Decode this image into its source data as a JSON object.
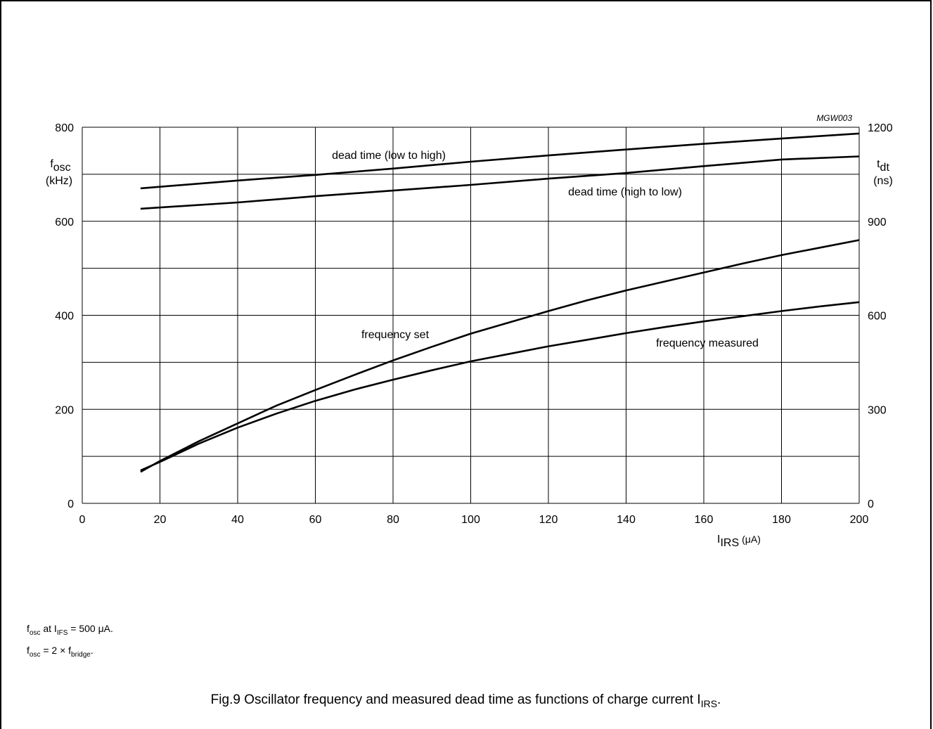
{
  "chart_data": {
    "type": "line",
    "code": "MGW003",
    "x": {
      "ticks": [
        0,
        20,
        40,
        60,
        80,
        100,
        120,
        140,
        160,
        180,
        200
      ],
      "range": [
        0,
        200
      ],
      "label_main": "I",
      "label_sub": "IRS",
      "label_unit": "(μA)"
    },
    "y_left": {
      "ticks": [
        0,
        200,
        400,
        600,
        800
      ],
      "range": [
        0,
        800
      ],
      "label_main": "f",
      "label_sub": "osc",
      "label_unit": "(kHz)"
    },
    "y_right": {
      "ticks": [
        0,
        300,
        600,
        900,
        1200
      ],
      "range": [
        0,
        1200
      ],
      "label_main": "t",
      "label_sub": "dt",
      "label_unit": "(ns)"
    },
    "grid": true,
    "series": [
      {
        "name": "dead time (low to high)",
        "axis": "right",
        "points": [
          [
            15,
            1005
          ],
          [
            40,
            1030
          ],
          [
            60,
            1048
          ],
          [
            80,
            1068
          ],
          [
            100,
            1090
          ],
          [
            120,
            1110
          ],
          [
            140,
            1129
          ],
          [
            160,
            1147
          ],
          [
            180,
            1164
          ],
          [
            200,
            1180
          ]
        ]
      },
      {
        "name": "dead time (high to low)",
        "axis": "right",
        "points": [
          [
            15,
            940
          ],
          [
            40,
            960
          ],
          [
            60,
            980
          ],
          [
            80,
            998
          ],
          [
            100,
            1016
          ],
          [
            120,
            1036
          ],
          [
            140,
            1054
          ],
          [
            160,
            1076
          ],
          [
            180,
            1097
          ],
          [
            200,
            1107
          ]
        ]
      },
      {
        "name": "frequency set",
        "axis": "left",
        "points": [
          [
            15,
            67
          ],
          [
            20,
            90
          ],
          [
            30,
            132
          ],
          [
            40,
            170
          ],
          [
            50,
            208
          ],
          [
            60,
            241
          ],
          [
            70,
            273
          ],
          [
            80,
            304
          ],
          [
            90,
            333
          ],
          [
            100,
            361
          ],
          [
            110,
            385
          ],
          [
            120,
            409
          ],
          [
            130,
            432
          ],
          [
            140,
            453
          ],
          [
            150,
            472
          ],
          [
            160,
            491
          ],
          [
            170,
            510
          ],
          [
            180,
            528
          ],
          [
            190,
            544
          ],
          [
            200,
            560
          ]
        ]
      },
      {
        "name": "frequency measured",
        "axis": "left",
        "points": [
          [
            15,
            70
          ],
          [
            20,
            88
          ],
          [
            30,
            127
          ],
          [
            40,
            161
          ],
          [
            50,
            191
          ],
          [
            60,
            218
          ],
          [
            70,
            242
          ],
          [
            80,
            263
          ],
          [
            90,
            283
          ],
          [
            100,
            302
          ],
          [
            110,
            318
          ],
          [
            120,
            334
          ],
          [
            130,
            348
          ],
          [
            140,
            362
          ],
          [
            150,
            375
          ],
          [
            160,
            387
          ],
          [
            170,
            398
          ],
          [
            180,
            409
          ],
          [
            190,
            419
          ],
          [
            200,
            428
          ]
        ]
      }
    ]
  },
  "notes": {
    "line1": {
      "a": "f",
      "a_sub": "osc",
      "b": " at I",
      "b_sub": "IFS",
      "c": " = 500 μA."
    },
    "line2": {
      "a": "f",
      "a_sub": "osc",
      "b": " = 2 × f",
      "b_sub": "bridge",
      "c": "."
    }
  },
  "caption": {
    "text": "Fig.9  Oscillator frequency and measured dead time as functions of charge current I",
    "sub": "IRS",
    "end": "."
  }
}
